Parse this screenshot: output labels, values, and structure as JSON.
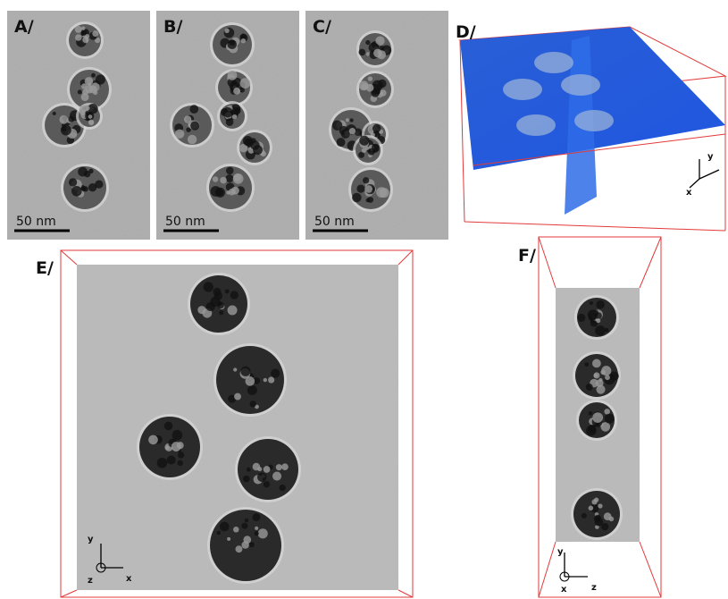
{
  "panels": [
    {
      "label": "A/",
      "scale_bar": "50 nm"
    },
    {
      "label": "B/",
      "scale_bar": "50 nm"
    },
    {
      "label": "C/",
      "scale_bar": "50 nm"
    },
    {
      "label": "D/",
      "axes": [
        "y",
        "x"
      ]
    },
    {
      "label": "E/",
      "axes": [
        "y",
        "z",
        "x"
      ]
    },
    {
      "label": "F/",
      "axes": [
        "y",
        "x",
        "z"
      ]
    }
  ]
}
